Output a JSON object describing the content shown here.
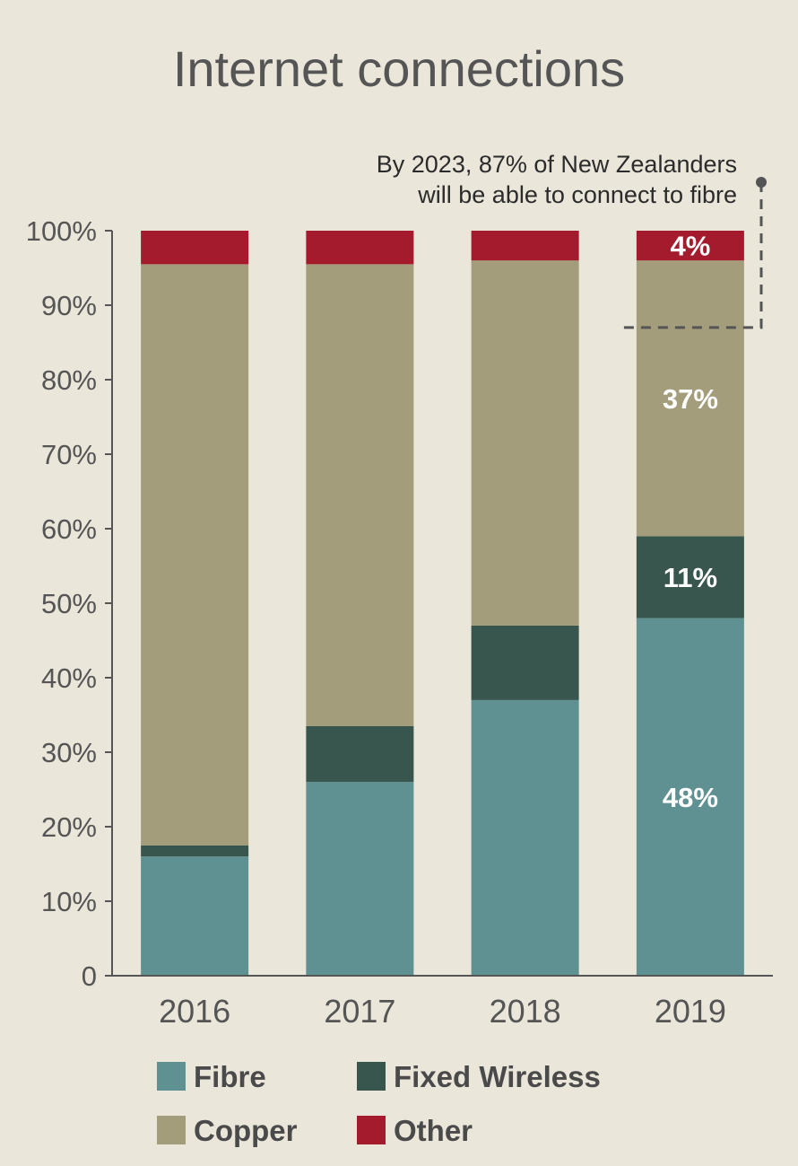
{
  "chart_data": {
    "type": "bar",
    "stacked": true,
    "title": "Internet connections",
    "categories": [
      "2016",
      "2017",
      "2018",
      "2019"
    ],
    "series": [
      {
        "name": "Fibre",
        "color": "#5f9193",
        "values": [
          16,
          26,
          37,
          48
        ]
      },
      {
        "name": "Fixed Wireless",
        "color": "#38564e",
        "values": [
          1.5,
          7.5,
          10,
          11
        ]
      },
      {
        "name": "Copper",
        "color": "#a49d7b",
        "values": [
          78,
          62,
          49,
          37
        ]
      },
      {
        "name": "Other",
        "color": "#a41b2e",
        "values": [
          4.5,
          4.5,
          4,
          4
        ]
      }
    ],
    "y_ticks": [
      "0",
      "10%",
      "20%",
      "30%",
      "40%",
      "50%",
      "60%",
      "70%",
      "80%",
      "90%",
      "100%"
    ],
    "ylim": [
      0,
      100
    ],
    "xlabel": "",
    "ylabel": "",
    "grid": false,
    "legend_position": "bottom",
    "data_labels": [
      {
        "category": "2019",
        "series": "Fibre",
        "text": "48%"
      },
      {
        "category": "2019",
        "series": "Fixed Wireless",
        "text": "11%"
      },
      {
        "category": "2019",
        "series": "Copper",
        "text": "37%"
      },
      {
        "category": "2019",
        "series": "Other",
        "text": "4%"
      }
    ],
    "annotation": {
      "lines": [
        "By 2023, 87% of New Zealanders",
        "will be able to connect to fibre"
      ],
      "value": 87
    }
  }
}
